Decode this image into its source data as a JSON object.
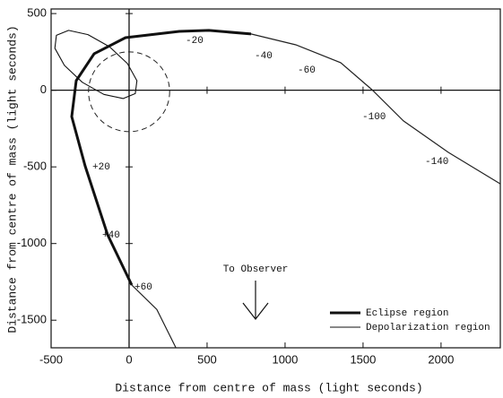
{
  "chart_data": {
    "type": "orbit",
    "xlabel": "Distance from centre of mass (light seconds)",
    "ylabel": "Distance from centre of mass (light seconds)",
    "xlim": [
      -500,
      2380
    ],
    "ylim": [
      -1680,
      530
    ],
    "xticks": [
      -500,
      0,
      500,
      1000,
      1500,
      2000
    ],
    "yticks": [
      500,
      0,
      -500,
      -1000,
      -1500
    ],
    "orbit": {
      "x": [
        300,
        178,
        17,
        -138,
        -282,
        -368,
        -339,
        -224,
        -23,
        322,
        511,
        782,
        1069,
        1356,
        1557,
        1759,
        2046,
        2379
      ],
      "y": [
        -1680,
        -1430,
        -1270,
        -943,
        -493,
        -172,
        62,
        238,
        343,
        384,
        390,
        367,
        296,
        180,
        4,
        -200,
        -405,
        -610
      ]
    },
    "series": [
      {
        "name": "Eclipse region",
        "color": "#111111",
        "x": [
          17,
          -138,
          -282,
          -368,
          -339,
          -224,
          -23,
          322,
          511,
          782
        ],
        "values": [
          -1270,
          -943,
          -493,
          -172,
          62,
          238,
          343,
          384,
          390,
          367
        ]
      },
      {
        "name": "Depolarization region",
        "color": "#111111",
        "x": [
          40,
          50,
          -11,
          -126,
          -264,
          -388,
          -466,
          -476,
          -415,
          -300,
          -162,
          -37
        ],
        "values": [
          -22,
          62,
          174,
          284,
          363,
          390,
          358,
          274,
          162,
          52,
          -27,
          -54
        ]
      }
    ],
    "circle": {
      "cx": 0,
      "cy": -10,
      "r": 260
    },
    "phase_labels": [
      "-20",
      "-40",
      "-60",
      "-100",
      "-140",
      "+20",
      "+40",
      "+60"
    ],
    "annotation": "To Observer"
  }
}
